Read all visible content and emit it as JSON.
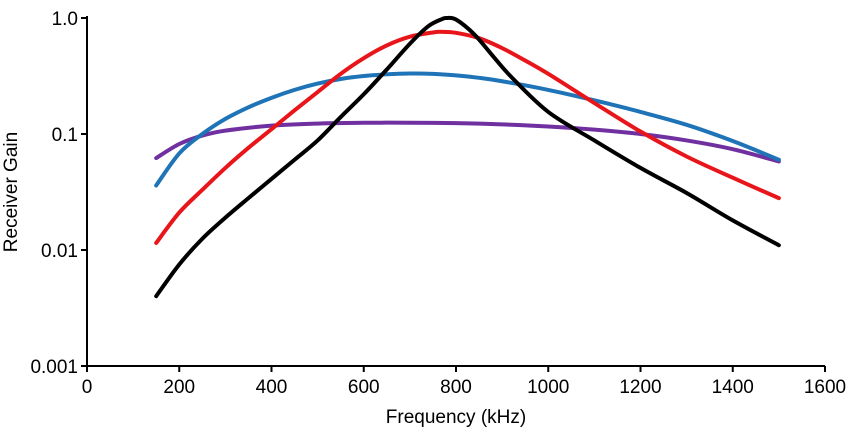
{
  "chart_data": {
    "type": "line",
    "title": "",
    "xlabel": "Frequency (kHz)",
    "ylabel": "Receiver Gain",
    "xlim": [
      0,
      1600
    ],
    "ylim": [
      0.001,
      1.0
    ],
    "yscale": "log",
    "grid": false,
    "legend": "none",
    "x_ticks": [
      {
        "value": 0,
        "label": "0"
      },
      {
        "value": 200,
        "label": "200"
      },
      {
        "value": 400,
        "label": "400"
      },
      {
        "value": 600,
        "label": "600"
      },
      {
        "value": 800,
        "label": "800"
      },
      {
        "value": 1000,
        "label": "1000"
      },
      {
        "value": 1200,
        "label": "1200"
      },
      {
        "value": 1400,
        "label": "1400"
      },
      {
        "value": 1600,
        "label": "1600"
      }
    ],
    "y_ticks": [
      {
        "value": 0.001,
        "label": "0.001"
      },
      {
        "value": 0.01,
        "label": "0.01"
      },
      {
        "value": 0.1,
        "label": "0.1"
      },
      {
        "value": 1.0,
        "label": "1.0"
      }
    ],
    "series": [
      {
        "color": "#000000",
        "points": [
          [
            150,
            0.004
          ],
          [
            200,
            0.0075
          ],
          [
            250,
            0.0125
          ],
          [
            300,
            0.019
          ],
          [
            350,
            0.028
          ],
          [
            400,
            0.041
          ],
          [
            450,
            0.06
          ],
          [
            500,
            0.088
          ],
          [
            550,
            0.14
          ],
          [
            600,
            0.22
          ],
          [
            650,
            0.36
          ],
          [
            700,
            0.6
          ],
          [
            740,
            0.85
          ],
          [
            770,
            0.98
          ],
          [
            780,
            1.0
          ],
          [
            800,
            0.97
          ],
          [
            840,
            0.72
          ],
          [
            880,
            0.47
          ],
          [
            920,
            0.31
          ],
          [
            1000,
            0.155
          ],
          [
            1100,
            0.088
          ],
          [
            1200,
            0.051
          ],
          [
            1300,
            0.031
          ],
          [
            1400,
            0.018
          ],
          [
            1500,
            0.011
          ]
        ]
      },
      {
        "color": "#e8151a",
        "points": [
          [
            150,
            0.0115
          ],
          [
            200,
            0.021
          ],
          [
            250,
            0.033
          ],
          [
            300,
            0.051
          ],
          [
            350,
            0.076
          ],
          [
            400,
            0.11
          ],
          [
            450,
            0.16
          ],
          [
            500,
            0.23
          ],
          [
            550,
            0.33
          ],
          [
            600,
            0.45
          ],
          [
            650,
            0.58
          ],
          [
            700,
            0.69
          ],
          [
            750,
            0.75
          ],
          [
            770,
            0.76
          ],
          [
            800,
            0.745
          ],
          [
            850,
            0.67
          ],
          [
            900,
            0.55
          ],
          [
            950,
            0.43
          ],
          [
            1000,
            0.33
          ],
          [
            1100,
            0.185
          ],
          [
            1200,
            0.105
          ],
          [
            1300,
            0.064
          ],
          [
            1400,
            0.042
          ],
          [
            1500,
            0.028
          ]
        ]
      },
      {
        "color": "#1f74b8",
        "points": [
          [
            150,
            0.036
          ],
          [
            200,
            0.068
          ],
          [
            250,
            0.1
          ],
          [
            300,
            0.135
          ],
          [
            350,
            0.17
          ],
          [
            400,
            0.205
          ],
          [
            450,
            0.24
          ],
          [
            500,
            0.272
          ],
          [
            550,
            0.298
          ],
          [
            600,
            0.316
          ],
          [
            650,
            0.327
          ],
          [
            700,
            0.332
          ],
          [
            750,
            0.33
          ],
          [
            800,
            0.32
          ],
          [
            850,
            0.305
          ],
          [
            900,
            0.285
          ],
          [
            1000,
            0.24
          ],
          [
            1100,
            0.195
          ],
          [
            1200,
            0.155
          ],
          [
            1300,
            0.12
          ],
          [
            1400,
            0.087
          ],
          [
            1500,
            0.06
          ]
        ]
      },
      {
        "color": "#7030a0",
        "points": [
          [
            150,
            0.062
          ],
          [
            200,
            0.082
          ],
          [
            250,
            0.097
          ],
          [
            300,
            0.107
          ],
          [
            400,
            0.118
          ],
          [
            500,
            0.123
          ],
          [
            600,
            0.125
          ],
          [
            700,
            0.125
          ],
          [
            800,
            0.124
          ],
          [
            900,
            0.121
          ],
          [
            1000,
            0.116
          ],
          [
            1100,
            0.109
          ],
          [
            1200,
            0.1
          ],
          [
            1300,
            0.088
          ],
          [
            1400,
            0.074
          ],
          [
            1500,
            0.058
          ]
        ]
      }
    ]
  }
}
